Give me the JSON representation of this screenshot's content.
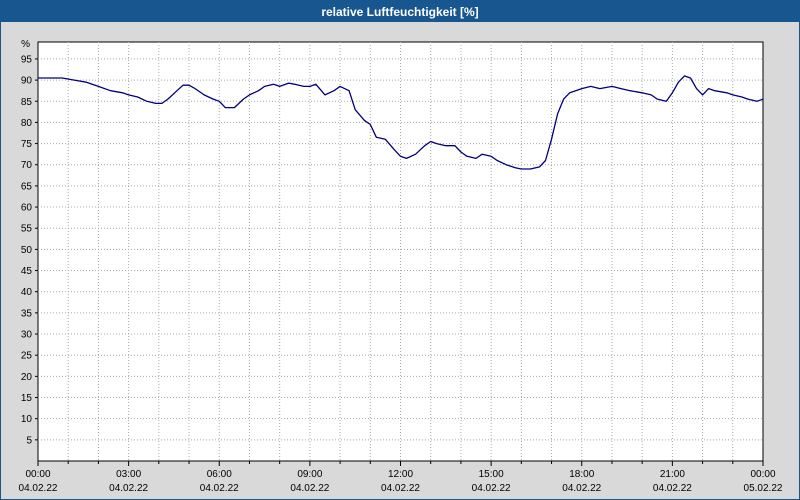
{
  "window": {
    "title": "relative Luftfeuchtigkeit [%]"
  },
  "colors": {
    "titlebar": "#17568e",
    "background": "#d9d9d9",
    "plot_bg": "#ffffff",
    "grid": "#a8a8a8",
    "axis": "#000000",
    "line": "#000080",
    "title_text": "#ffffff"
  },
  "chart_data": {
    "type": "line",
    "title": "relative Luftfeuchtigkeit [%]",
    "xlabel": "",
    "ylabel": "%",
    "ylim": [
      0,
      99
    ],
    "xlim_hours": [
      0,
      24
    ],
    "grid": true,
    "legend": "none",
    "y_ticks": [
      5,
      10,
      15,
      20,
      25,
      30,
      35,
      40,
      45,
      50,
      55,
      60,
      65,
      70,
      75,
      80,
      85,
      90,
      95
    ],
    "x_tick_hours": [
      0,
      3,
      6,
      9,
      12,
      15,
      18,
      21,
      24
    ],
    "x_tick_labels": [
      "00:00",
      "03:00",
      "06:00",
      "09:00",
      "12:00",
      "15:00",
      "18:00",
      "21:00",
      "00:00"
    ],
    "x_date_labels": [
      "04.02.22",
      "04.02.22",
      "04.02.22",
      "04.02.22",
      "04.02.22",
      "04.02.22",
      "04.02.22",
      "04.02.22",
      "05.02.22"
    ],
    "series_name": "relative Luftfeuchtigkeit",
    "unit": "%",
    "points": [
      [
        0,
        90.5
      ],
      [
        0.8,
        90.5
      ],
      [
        1.2,
        90
      ],
      [
        1.6,
        89.5
      ],
      [
        2,
        88.5
      ],
      [
        2.4,
        87.5
      ],
      [
        2.8,
        87
      ],
      [
        3,
        86.5
      ],
      [
        3.3,
        86
      ],
      [
        3.6,
        85
      ],
      [
        3.9,
        84.5
      ],
      [
        4.1,
        84.5
      ],
      [
        4.3,
        85.5
      ],
      [
        4.6,
        87.5
      ],
      [
        4.8,
        88.8
      ],
      [
        5,
        88.8
      ],
      [
        5.2,
        88
      ],
      [
        5.5,
        86.5
      ],
      [
        5.8,
        85.5
      ],
      [
        6,
        85
      ],
      [
        6.2,
        83.5
      ],
      [
        6.5,
        83.5
      ],
      [
        6.8,
        85.5
      ],
      [
        7,
        86.5
      ],
      [
        7.3,
        87.5
      ],
      [
        7.5,
        88.5
      ],
      [
        7.8,
        89
      ],
      [
        8,
        88.5
      ],
      [
        8.3,
        89.3
      ],
      [
        8.5,
        89
      ],
      [
        8.8,
        88.5
      ],
      [
        9,
        88.5
      ],
      [
        9.2,
        89
      ],
      [
        9.5,
        86.5
      ],
      [
        9.8,
        87.5
      ],
      [
        10,
        88.5
      ],
      [
        10.3,
        87.5
      ],
      [
        10.5,
        83
      ],
      [
        10.8,
        80.5
      ],
      [
        11,
        79.5
      ],
      [
        11.2,
        76.5
      ],
      [
        11.5,
        76
      ],
      [
        11.8,
        73.5
      ],
      [
        12,
        72
      ],
      [
        12.2,
        71.5
      ],
      [
        12.5,
        72.5
      ],
      [
        12.8,
        74.5
      ],
      [
        13,
        75.5
      ],
      [
        13.2,
        75
      ],
      [
        13.5,
        74.5
      ],
      [
        13.8,
        74.5
      ],
      [
        14,
        73
      ],
      [
        14.2,
        72
      ],
      [
        14.5,
        71.5
      ],
      [
        14.7,
        72.5
      ],
      [
        15,
        72
      ],
      [
        15.2,
        71
      ],
      [
        15.5,
        70
      ],
      [
        15.8,
        69.3
      ],
      [
        16,
        69
      ],
      [
        16.3,
        69
      ],
      [
        16.6,
        69.5
      ],
      [
        16.8,
        71
      ],
      [
        17,
        76
      ],
      [
        17.2,
        82
      ],
      [
        17.4,
        85.5
      ],
      [
        17.6,
        87
      ],
      [
        17.8,
        87.5
      ],
      [
        18,
        88
      ],
      [
        18.3,
        88.5
      ],
      [
        18.6,
        88
      ],
      [
        19,
        88.5
      ],
      [
        19.3,
        88
      ],
      [
        19.6,
        87.5
      ],
      [
        20,
        87
      ],
      [
        20.3,
        86.5
      ],
      [
        20.5,
        85.5
      ],
      [
        20.8,
        85
      ],
      [
        21,
        87
      ],
      [
        21.2,
        89.5
      ],
      [
        21.4,
        91
      ],
      [
        21.6,
        90.5
      ],
      [
        21.8,
        88
      ],
      [
        22,
        86.5
      ],
      [
        22.2,
        88
      ],
      [
        22.4,
        87.5
      ],
      [
        22.8,
        87
      ],
      [
        23,
        86.5
      ],
      [
        23.3,
        86
      ],
      [
        23.5,
        85.5
      ],
      [
        23.8,
        85
      ],
      [
        24,
        85.5
      ]
    ]
  }
}
